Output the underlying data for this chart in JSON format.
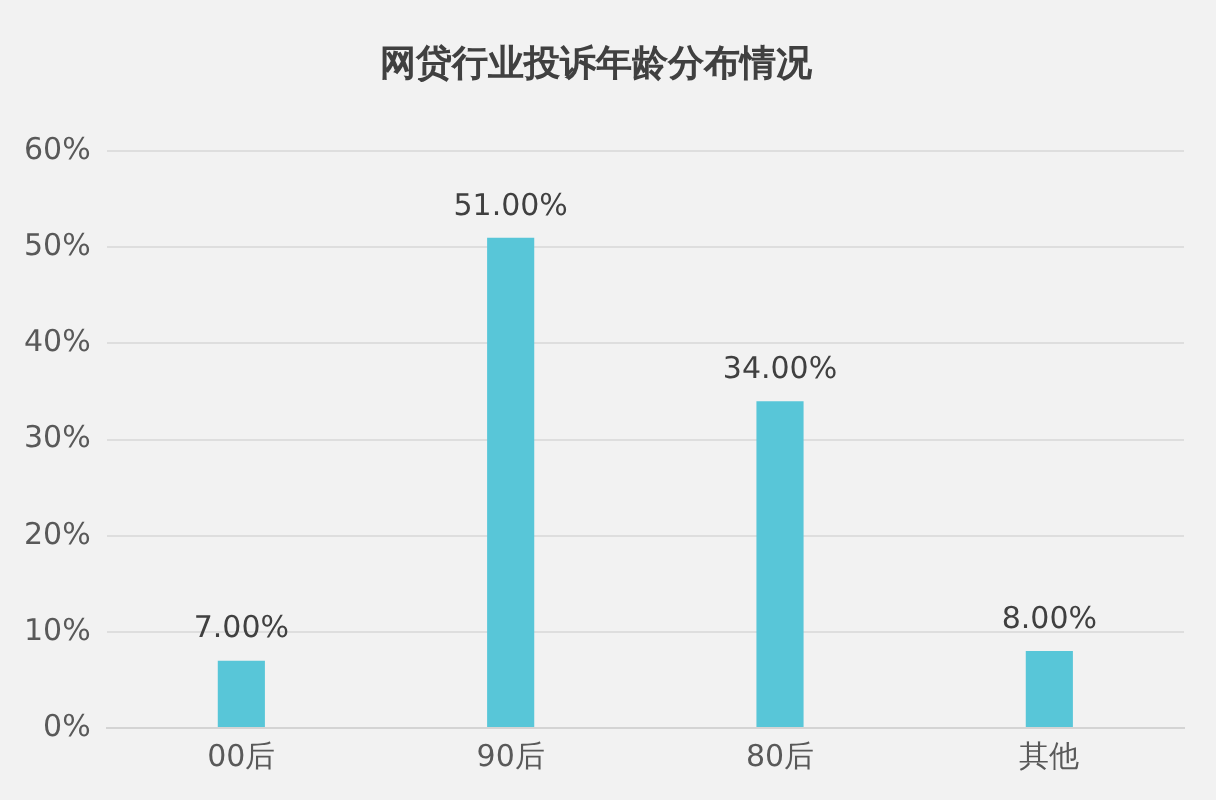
{
  "chart_data": {
    "type": "bar",
    "title": "网贷行业投诉年龄分布情况",
    "categories": [
      "00后",
      "90后",
      "80后",
      "其他"
    ],
    "values": [
      7,
      51,
      34,
      8
    ],
    "value_labels": [
      "7.00%",
      "51.00%",
      "34.00%",
      "8.00%"
    ],
    "color": "#58c6d8",
    "ylim": [
      0,
      60
    ],
    "yticks": [
      {
        "value": 0,
        "label": "0%"
      },
      {
        "value": 10,
        "label": "10%"
      },
      {
        "value": 20,
        "label": "20%"
      },
      {
        "value": 30,
        "label": "30%"
      },
      {
        "value": 40,
        "label": "40%"
      },
      {
        "value": 50,
        "label": "50%"
      },
      {
        "value": 60,
        "label": "60%"
      }
    ],
    "grid": "y"
  }
}
